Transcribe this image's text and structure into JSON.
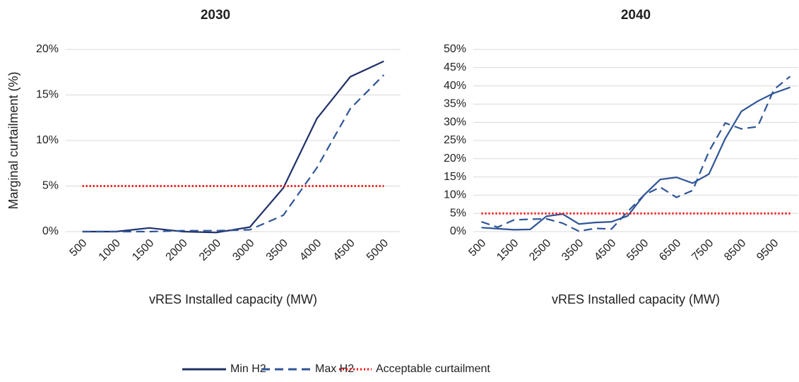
{
  "chart_data": [
    {
      "type": "line",
      "title": "2030",
      "y_label": "Marginal curtailment (%)",
      "x_label": "vRES Installed capacity (MW)",
      "categories": [
        "500",
        "1000",
        "1500",
        "2000",
        "2500",
        "3000",
        "3500",
        "4000",
        "4500",
        "5000"
      ],
      "ylim": [
        0,
        20
      ],
      "yticks": [
        {
          "value": 0,
          "label": "0%"
        },
        {
          "value": 5,
          "label": "5%"
        },
        {
          "value": 10,
          "label": "10%"
        },
        {
          "value": 15,
          "label": "15%"
        },
        {
          "value": 20,
          "label": "20%"
        }
      ],
      "grid": true,
      "series": [
        {
          "name": "Min H2",
          "color": "#1f3068",
          "dash": "solid",
          "values": [
            0,
            0,
            0.4,
            0,
            -0.1,
            0.5,
            4.8,
            12.4,
            17,
            18.7
          ]
        },
        {
          "name": "Max H2",
          "color": "#2f5597",
          "dash": "dashed",
          "values": [
            0,
            0,
            0,
            0.1,
            0.1,
            0.2,
            1.8,
            7,
            13.5,
            17.2
          ]
        },
        {
          "name": "Acceptable curtailment",
          "color": "#ff0000",
          "dash": "dotted",
          "values": [
            5,
            5,
            5,
            5,
            5,
            5,
            5,
            5,
            5,
            5
          ]
        }
      ]
    },
    {
      "type": "line",
      "title": "2040",
      "x_label": "vRES Installed capacity (MW)",
      "categories": [
        "500",
        null,
        "1500",
        null,
        "2500",
        null,
        "3500",
        null,
        "4500",
        null,
        "5500",
        null,
        "6500",
        null,
        "7500",
        null,
        "8500",
        null,
        "9500",
        null
      ],
      "ylim": [
        0,
        50
      ],
      "yticks": [
        {
          "value": 0,
          "label": "0%"
        },
        {
          "value": 5,
          "label": "5%"
        },
        {
          "value": 10,
          "label": "10%"
        },
        {
          "value": 15,
          "label": "15%"
        },
        {
          "value": 20,
          "label": "20%"
        },
        {
          "value": 25,
          "label": "25%"
        },
        {
          "value": 30,
          "label": "30%"
        },
        {
          "value": 35,
          "label": "35%"
        },
        {
          "value": 40,
          "label": "40%"
        },
        {
          "value": 45,
          "label": "45%"
        },
        {
          "value": 50,
          "label": "50%"
        }
      ],
      "grid": true,
      "series": [
        {
          "color": "#2f5597",
          "dash": "solid",
          "values": [
            1.1,
            0.8,
            0.5,
            0.6,
            4.2,
            4.8,
            2.1,
            2.5,
            2.7,
            4.3,
            10,
            14.3,
            14.9,
            13.3,
            15.8,
            25.5,
            33,
            35.8,
            38,
            39.6
          ]
        },
        {
          "color": "#2f5597",
          "dash": "dashed",
          "values": [
            2.7,
            1.2,
            3.2,
            3.4,
            3.5,
            2.3,
            0.1,
            0.9,
            0.7,
            5.5,
            10,
            12.2,
            9.4,
            11.3,
            22,
            29.8,
            28.2,
            28.8,
            39,
            42.6
          ]
        },
        {
          "color": "#ff0000",
          "dash": "dotted",
          "values": [
            5,
            5,
            5,
            5,
            5,
            5,
            5,
            5,
            5,
            5,
            5,
            5,
            5,
            5,
            5,
            5,
            5,
            5,
            5,
            5
          ]
        }
      ]
    }
  ]
}
